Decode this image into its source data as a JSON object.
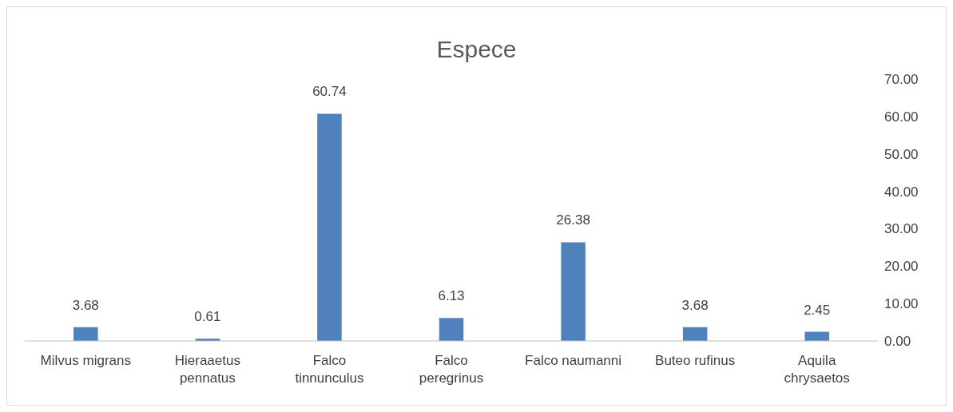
{
  "chart_data": {
    "type": "bar",
    "title": "Espece",
    "categories": [
      "Milvus migrans",
      "Hieraaetus pennatus",
      "Falco tinnunculus",
      "Falco peregrinus",
      "Falco naumanni",
      "Buteo rufinus",
      "Aquila chrysaetos"
    ],
    "values": [
      3.68,
      0.61,
      60.74,
      6.13,
      26.38,
      3.68,
      2.45
    ],
    "color": "#4f81bd",
    "ylim": [
      0,
      70
    ],
    "yticks": [
      {
        "value": 0,
        "label": "0.00"
      },
      {
        "value": 10,
        "label": "10.00"
      },
      {
        "value": 20,
        "label": "20.00"
      },
      {
        "value": 30,
        "label": "30.00"
      },
      {
        "value": 40,
        "label": "40.00"
      },
      {
        "value": 50,
        "label": "50.00"
      },
      {
        "value": 60,
        "label": "60.00"
      },
      {
        "value": 70,
        "label": "70.00"
      }
    ],
    "grid": false,
    "legend": false,
    "data_labels": true
  }
}
